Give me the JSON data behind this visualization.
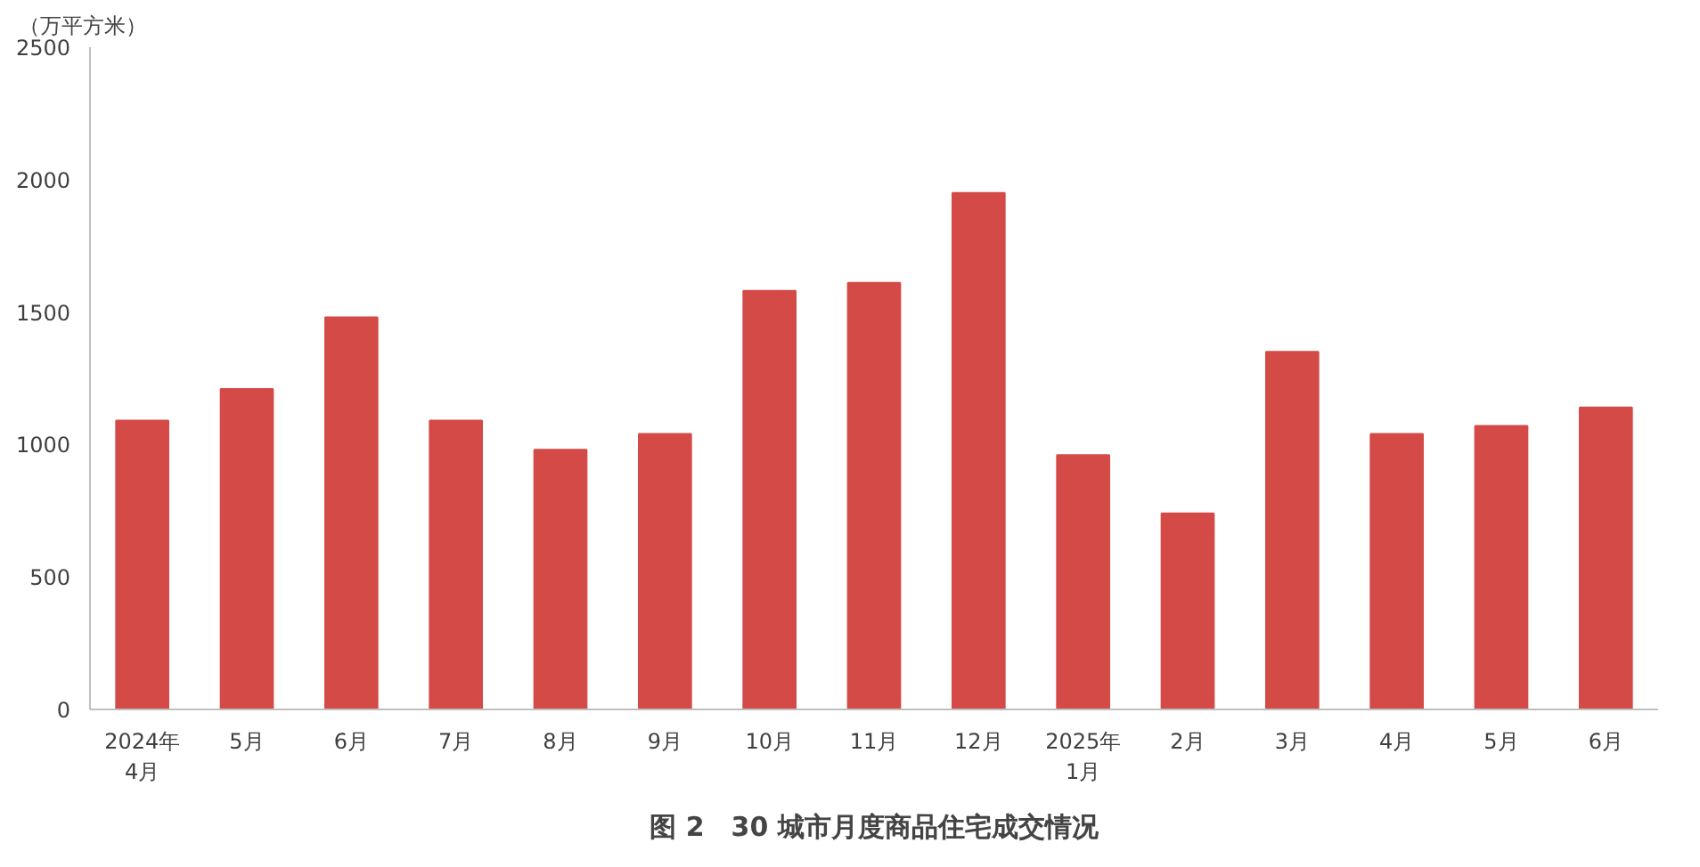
{
  "chart_data": {
    "type": "bar",
    "title": "图 2　30 城市月度商品住宅成交情况",
    "ylabel": "（万平方米）",
    "categories": [
      "2024年\n4月",
      "5月",
      "6月",
      "7月",
      "8月",
      "9月",
      "10月",
      "11月",
      "12月",
      "2025年\n1月",
      "2月",
      "3月",
      "4月",
      "5月",
      "6月"
    ],
    "values": [
      1090,
      1210,
      1480,
      1090,
      980,
      1040,
      1580,
      1610,
      1950,
      960,
      740,
      1350,
      1040,
      1070,
      1140
    ],
    "color": "#d44a47",
    "ylim": [
      0,
      2500
    ],
    "yticks": [
      0,
      500,
      1000,
      1500,
      2000,
      2500
    ],
    "grid": false
  }
}
